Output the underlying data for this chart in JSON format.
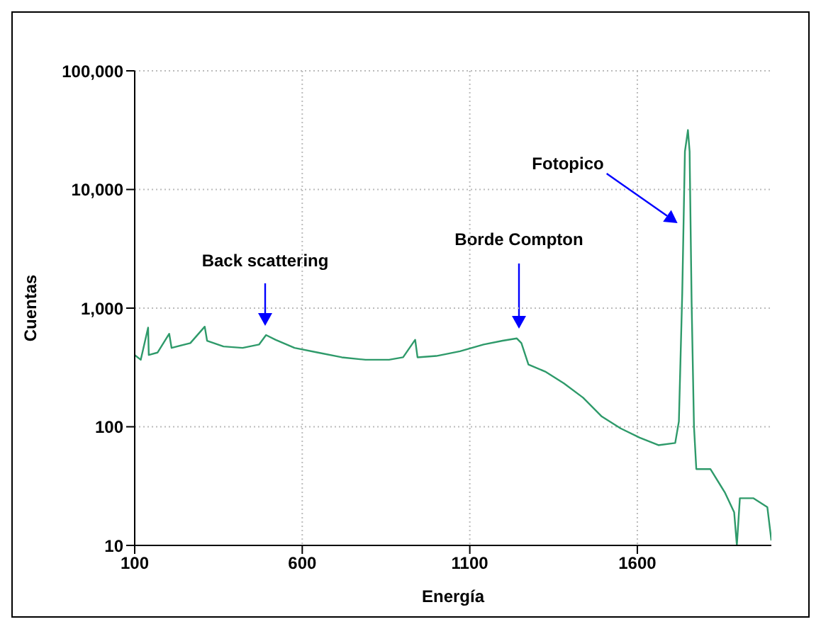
{
  "chart_data": {
    "type": "line",
    "xlabel": "Energía",
    "ylabel": "Cuentas",
    "log": "y",
    "grid": true,
    "legend": false,
    "marker": "none",
    "line_style": "solid",
    "xlim": [
      100,
      2000
    ],
    "xticks": [
      100,
      600,
      1100,
      1600
    ],
    "ylim": [
      10,
      100000
    ],
    "yticks": [
      10,
      100,
      {
        "value": 1000,
        "label": "1,000"
      },
      {
        "value": 10000,
        "label": "10,000"
      },
      {
        "value": 100000,
        "label": "100,000"
      }
    ],
    "series": [
      {
        "color": "#2e9a6a",
        "x": [
          100,
          118,
          140,
          142,
          168,
          203,
          210,
          266,
          309,
          316,
          365,
          422,
          471,
          492,
          520,
          577,
          647,
          718,
          789,
          859,
          901,
          937,
          944,
          1000,
          1071,
          1141,
          1198,
          1240,
          1254,
          1275,
          1325,
          1381,
          1438,
          1494,
          1550,
          1607,
          1663,
          1713,
          1724,
          1734,
          1742,
          1751,
          1756,
          1762,
          1769,
          1776,
          1818,
          1861,
          1889,
          1897,
          1906,
          1946,
          1988,
          2000
        ],
        "values": [
          403,
          367,
          686,
          403,
          422,
          608,
          462,
          507,
          698,
          531,
          475,
          462,
          493,
          593,
          541,
          462,
          422,
          385,
          367,
          367,
          385,
          541,
          385,
          395,
          433,
          493,
          531,
          556,
          507,
          335,
          292,
          232,
          176,
          122,
          97,
          81,
          70,
          73,
          111,
          1330,
          20900,
          31700,
          20900,
          1107,
          101,
          44,
          44,
          28,
          19,
          10,
          25,
          25,
          21,
          11
        ]
      }
    ],
    "annotations": [
      "Back scattering",
      "Borde Compton",
      {
        "text": "Fotopico",
        "x": 1720,
        "y": 5200
      }
    ]
  }
}
